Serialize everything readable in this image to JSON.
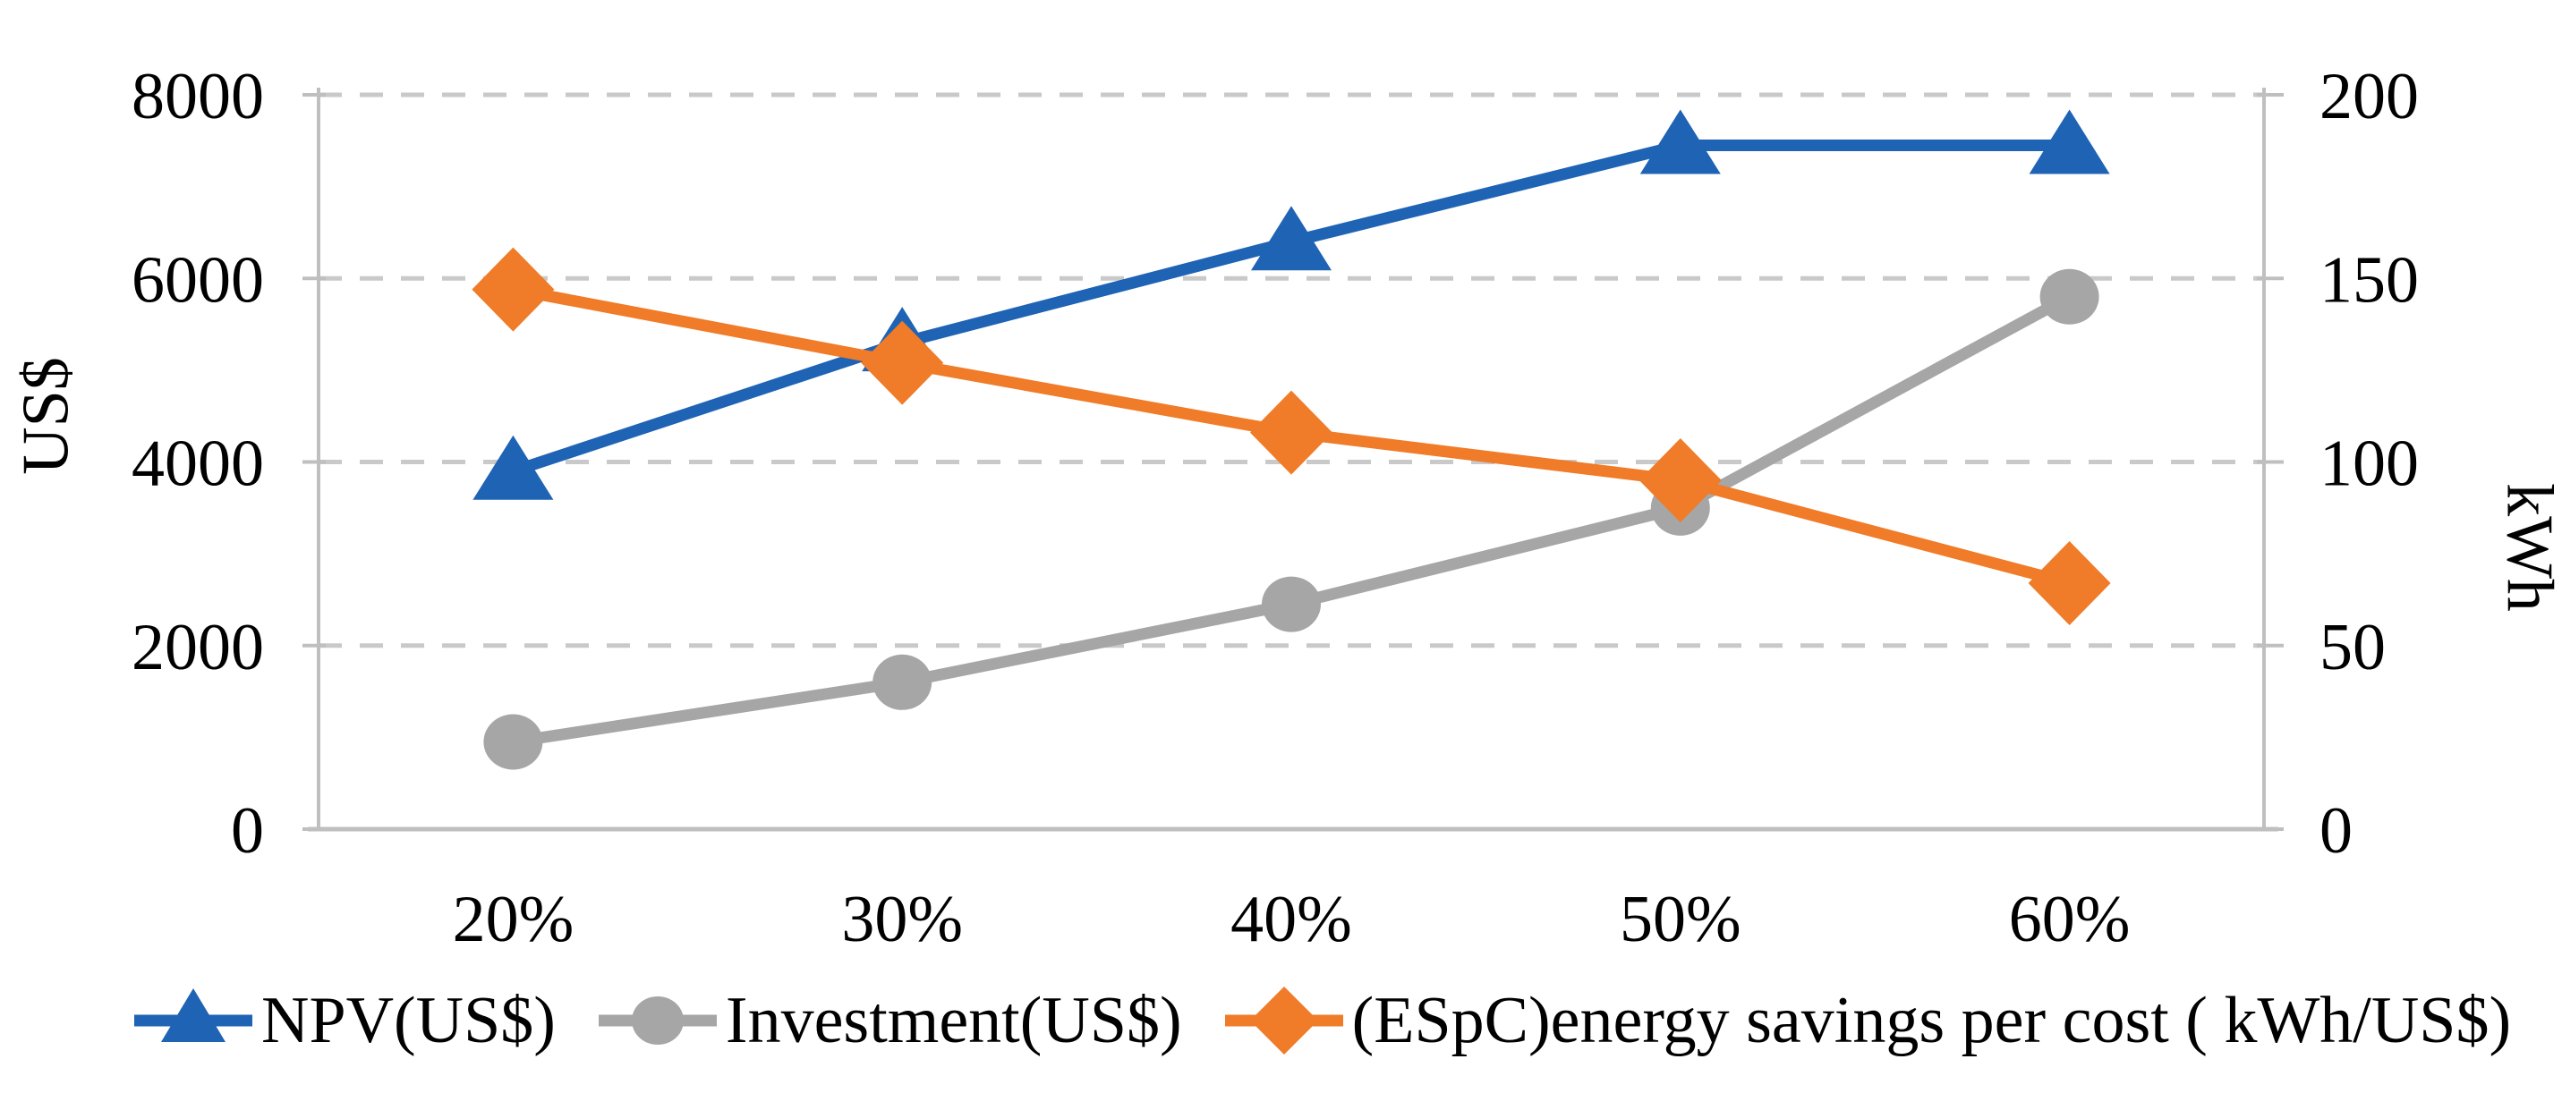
{
  "chart_data": {
    "type": "line",
    "title": "",
    "categories": [
      "20%",
      "30%",
      "40%",
      "50%",
      "60%"
    ],
    "series": [
      {
        "name": "NPV(US$)",
        "axis": "left",
        "marker": "triangle",
        "color": "#1F63B5",
        "values": [
          3900,
          5300,
          6400,
          7450,
          7450
        ]
      },
      {
        "name": "Investment(US$)",
        "axis": "left",
        "marker": "circle",
        "color": "#A6A6A6",
        "values": [
          950,
          1600,
          2450,
          3500,
          5800
        ]
      },
      {
        "name": "(ESpC)energy savings per cost ( kWh/US$)",
        "axis": "right",
        "marker": "diamond",
        "color": "#F07B28",
        "values": [
          147,
          127,
          108,
          95,
          67
        ]
      }
    ],
    "left_axis": {
      "title": "US$",
      "range": [
        0,
        8000
      ],
      "tick_labels": [
        "0",
        "2000",
        "4000",
        "6000",
        "8000"
      ]
    },
    "right_axis": {
      "title": "kWh",
      "range": [
        0,
        200
      ],
      "tick_labels": [
        "0",
        "50",
        "100",
        "150",
        "200"
      ]
    },
    "grid": "horizontal-dashed",
    "legend_position": "bottom",
    "colors": {
      "gridline": "#C9C9C9",
      "axis_line": "#BFBFBF",
      "text": "#000000",
      "background": "#FFFFFF"
    }
  }
}
